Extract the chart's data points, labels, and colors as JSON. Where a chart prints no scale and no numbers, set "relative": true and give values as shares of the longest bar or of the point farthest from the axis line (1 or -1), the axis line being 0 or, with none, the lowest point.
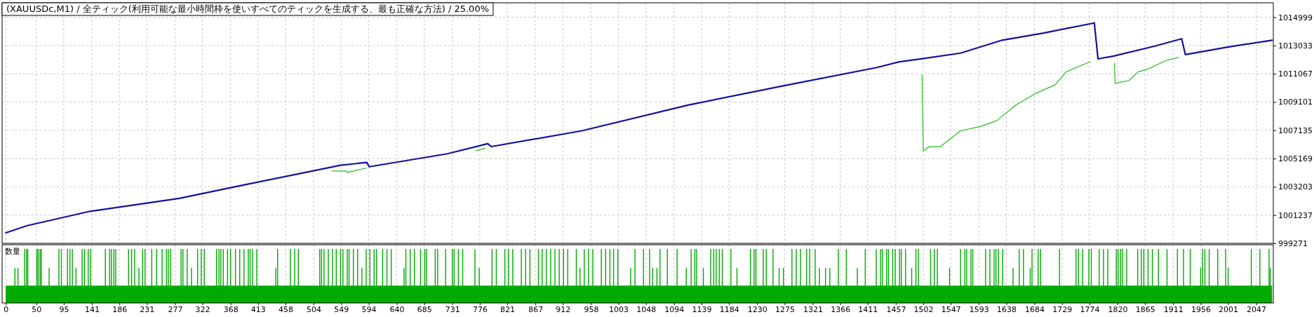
{
  "chart_data": [
    {
      "type": "line",
      "title": "(XAUUSDc,M1) / 全ティック(利用可能な最小時間枠を使いすべてのティックを生成する、最も正確な方法) / 25.00%",
      "xlim": [
        -6,
        2075
      ],
      "ylim": [
        999271,
        1016000
      ],
      "yticks": [
        999271,
        1001237,
        1003203,
        1005169,
        1007135,
        1009101,
        1011067,
        1013033,
        1014999
      ],
      "xticks": [
        0,
        50,
        95,
        141,
        186,
        231,
        277,
        322,
        368,
        413,
        458,
        504,
        549,
        594,
        640,
        685,
        731,
        776,
        821,
        867,
        912,
        958,
        1003,
        1048,
        1094,
        1139,
        1184,
        1230,
        1275,
        1321,
        1366,
        1411,
        1457,
        1502,
        1547,
        1593,
        1638,
        1684,
        1729,
        1774,
        1820,
        1865,
        1911,
        1956,
        2001,
        2047
      ],
      "tick_labels": "y",
      "grid": true,
      "series": [
        {
          "color": "#22bb22",
          "x": [
            534,
            558,
            559,
            590,
            600,
            770,
            785,
            800,
            1500,
            1502,
            1512,
            1530,
            1563,
            1595,
            1622,
            1654,
            1686,
            1718,
            1736,
            1775,
            1800,
            1815,
            1816,
            1839,
            1854,
            1870,
            1900,
            1920
          ],
          "values": [
            1004300,
            1004300,
            1004200,
            1004500,
            null,
            1005700,
            1005900,
            null,
            1011000,
            1005700,
            1006000,
            1006000,
            1007100,
            1007400,
            1007800,
            1008900,
            1009700,
            1010300,
            1011200,
            1011900,
            null,
            1011800,
            1010400,
            1010600,
            1011200,
            1011400,
            1012000,
            1012200
          ]
        },
        {
          "color": "#1212a0",
          "x": [
            0,
            35,
            138,
            284,
            386,
            548,
            591,
            595,
            723,
            789,
            795,
            943,
            1118,
            1270,
            1426,
            1463,
            1499,
            1563,
            1631,
            1699,
            1782,
            1788,
            1814,
            1882,
            1925,
            1931,
            1997,
            2073
          ],
          "values": [
            1000000,
            1000500,
            1001500,
            1002400,
            1003300,
            1004700,
            1004900,
            1004600,
            1005500,
            1006200,
            1006000,
            1007100,
            1008900,
            1010200,
            1011500,
            1011900,
            1012100,
            1012500,
            1013400,
            1013900,
            1014600,
            1012100,
            1012300,
            1013000,
            1013500,
            1012400,
            1012900,
            1013400
          ]
        }
      ]
    },
    {
      "type": "bar",
      "ylabel": "数量",
      "relative": true,
      "xlim": [
        -6,
        2075
      ],
      "xticks": [
        0,
        50,
        95,
        141,
        186,
        231,
        277,
        322,
        368,
        413,
        458,
        504,
        549,
        594,
        640,
        685,
        731,
        776,
        821,
        867,
        912,
        958,
        1003,
        1048,
        1094,
        1139,
        1184,
        1230,
        1275,
        1321,
        1366,
        1411,
        1457,
        1502,
        1547,
        1593,
        1638,
        1684,
        1729,
        1774,
        1820,
        1865,
        1911,
        1956,
        2001,
        2047
      ],
      "tick_labels": "x",
      "grid": "x",
      "series": [
        {
          "type": "area",
          "color": "#00aa00",
          "x": [
            0,
            2073
          ],
          "values": [
            0.32,
            0.32
          ]
        },
        {
          "color": "#00aa00",
          "x": [
            15,
            20,
            31,
            34,
            36,
            51,
            53,
            56,
            58,
            71,
            87,
            91,
            101,
            105,
            109,
            115,
            125,
            129,
            135,
            139,
            163,
            170,
            173,
            177,
            180,
            201,
            206,
            211,
            218,
            224,
            228,
            239,
            247,
            256,
            263,
            266,
            270,
            287,
            290,
            297,
            304,
            314,
            320,
            325,
            345,
            349,
            352,
            356,
            363,
            368,
            376,
            383,
            390,
            397,
            400,
            404,
            411,
            442,
            445,
            466,
            473,
            479,
            514,
            517,
            521,
            528,
            535,
            541,
            548,
            552,
            559,
            562,
            569,
            576,
            583,
            590,
            596,
            603,
            607,
            617,
            624,
            631,
            652,
            655,
            662,
            669,
            679,
            686,
            689,
            703,
            707,
            720,
            731,
            734,
            741,
            748,
            768,
            775,
            796,
            803,
            817,
            823,
            830,
            844,
            851,
            858,
            872,
            878,
            885,
            892,
            899,
            906,
            913,
            920,
            934,
            940,
            947,
            954,
            961,
            975,
            982,
            989,
            995,
            1002,
            1023,
            1030,
            1044,
            1054,
            1059,
            1066,
            1071,
            1083,
            1099,
            1114,
            1122,
            1128,
            1131,
            1142,
            1154,
            1159,
            1163,
            1168,
            1173,
            1187,
            1197,
            1219,
            1225,
            1228,
            1240,
            1245,
            1256,
            1266,
            1273,
            1287,
            1294,
            1301,
            1311,
            1316,
            1325,
            1332,
            1342,
            1349,
            1363,
            1376,
            1394,
            1407,
            1425,
            1432,
            1435,
            1442,
            1445,
            1452,
            1456,
            1463,
            1466,
            1473,
            1483,
            1490,
            1494,
            1514,
            1520,
            1525,
            1545,
            1563,
            1570,
            1573,
            1580,
            1583,
            1604,
            1611,
            1618,
            1621,
            1625,
            1632,
            1649,
            1659,
            1666,
            1677,
            1680,
            1690,
            1694,
            1725,
            1752,
            1756,
            1763,
            1773,
            1777,
            1790,
            1797,
            1804,
            1818,
            1821,
            1825,
            1828,
            1835,
            1853,
            1859,
            1863,
            1870,
            1877,
            1887,
            1901,
            1918,
            1928,
            1939,
            1956,
            1959,
            1963,
            1970,
            1984,
            1997,
            2001,
            2039,
            2053,
            2068,
            2070
          ],
          "values": [
            0.65,
            0.65,
            1,
            1,
            1,
            1,
            1,
            1,
            1,
            0.65,
            1,
            1,
            1,
            1,
            1,
            0.65,
            1,
            1,
            1,
            1,
            1,
            1,
            1,
            1,
            1,
            1,
            1,
            1,
            0.65,
            1,
            1,
            1,
            1,
            1,
            1,
            1,
            1,
            1,
            1,
            1,
            0.65,
            1,
            1,
            1,
            1,
            1,
            1,
            1,
            1,
            1,
            1,
            1,
            1,
            1,
            1,
            1,
            1,
            0.65,
            1,
            1,
            1,
            1,
            1,
            1,
            1,
            1,
            1,
            1,
            1,
            1,
            1,
            1,
            1,
            1,
            0.65,
            1,
            1,
            1,
            1,
            1,
            1,
            1,
            0.65,
            1,
            1,
            1,
            1,
            1,
            1,
            1,
            1,
            1,
            1,
            1,
            1,
            1,
            1,
            0.65,
            1,
            1,
            1,
            1,
            1,
            1,
            1,
            1,
            1,
            1,
            1,
            1,
            1,
            1,
            1,
            1,
            1,
            0.65,
            1,
            1,
            1,
            1,
            1,
            1,
            1,
            1,
            0.65,
            1,
            1,
            1,
            0.65,
            0.65,
            1,
            1,
            1,
            0.65,
            1,
            1,
            1,
            0.65,
            1,
            1,
            1,
            1,
            1,
            1,
            0.65,
            1,
            1,
            1,
            1,
            1,
            1,
            0.65,
            0.65,
            1,
            1,
            1,
            1,
            1,
            1,
            0.65,
            0.65,
            0.65,
            1,
            1,
            0.65,
            1,
            1,
            1,
            1,
            1,
            1,
            1,
            1,
            1,
            1,
            1,
            0.65,
            1,
            1,
            1,
            1,
            1,
            0.65,
            1,
            1,
            1,
            1,
            1,
            1,
            1,
            1,
            1,
            1,
            1,
            0.65,
            1,
            1,
            0.65,
            1,
            1,
            1,
            1,
            1,
            1,
            1,
            1,
            1,
            1,
            1,
            1,
            1,
            1,
            1,
            1,
            1,
            1,
            1,
            1,
            1,
            1,
            1,
            1,
            1,
            1,
            1,
            0.65,
            1,
            1,
            1,
            1,
            1,
            0.65,
            1,
            1,
            1,
            0.65
          ]
        }
      ]
    }
  ]
}
